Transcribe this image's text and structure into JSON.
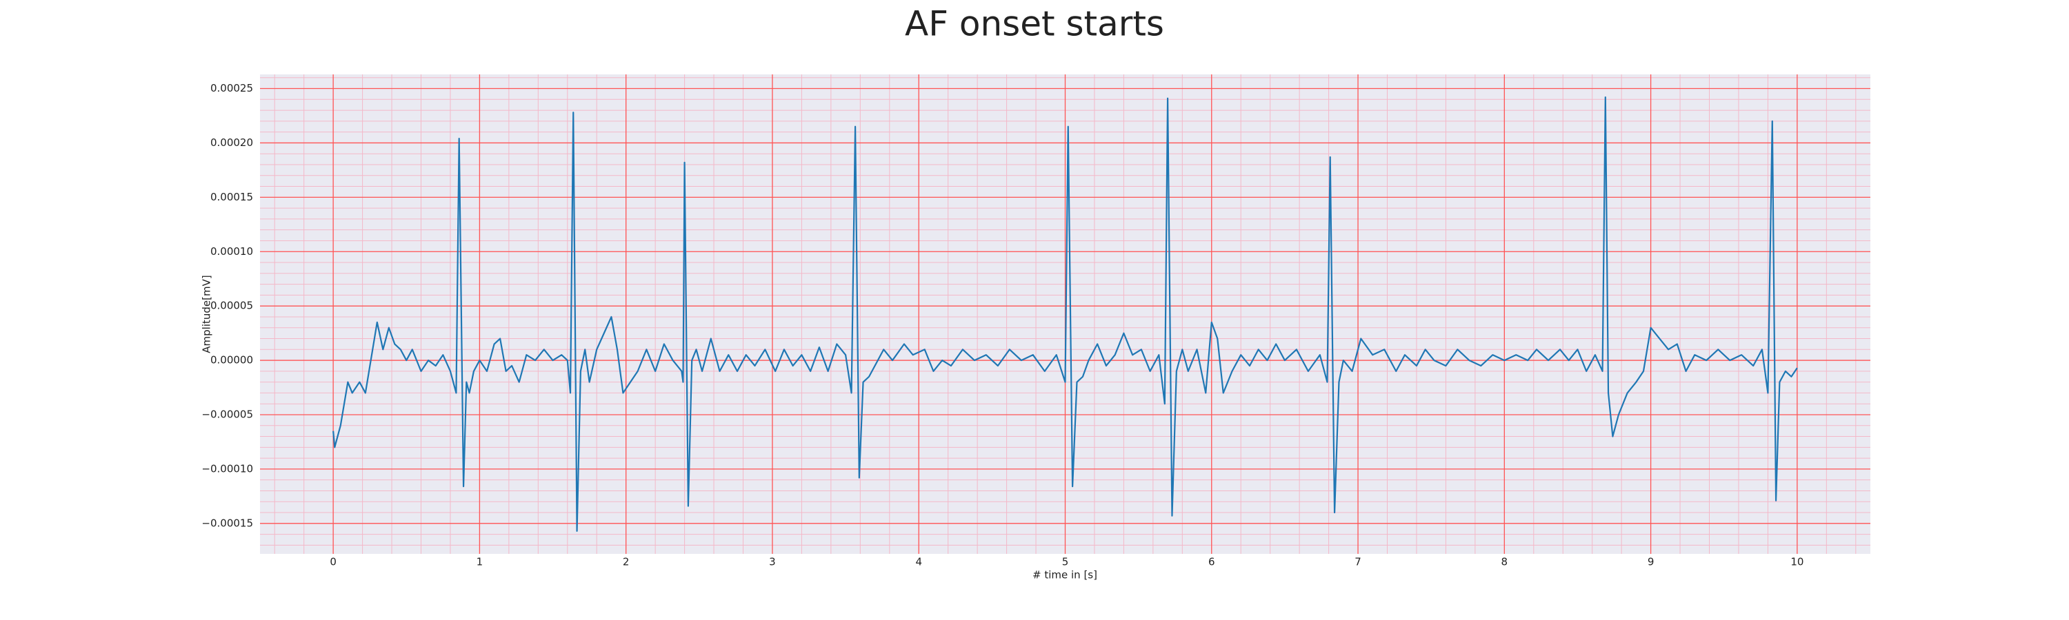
{
  "chart_data": {
    "type": "line",
    "title": "AF onset starts",
    "x_label": "# time in [s]",
    "y_label": "Amplitude[mV]",
    "color": "#1f77b4",
    "grid": true,
    "minor_grid": true,
    "xlim": [
      -0.5,
      10.5
    ],
    "xticks": [
      0,
      1,
      2,
      3,
      4,
      5,
      6,
      7,
      8,
      9,
      10
    ],
    "ylim": [
      -0.000178,
      0.000263
    ],
    "yticks": [
      {
        "value": -0.00015,
        "label": "−0.00015"
      },
      {
        "value": -0.0001,
        "label": "−0.00010"
      },
      {
        "value": -5e-05,
        "label": "−0.00005"
      },
      {
        "value": 0,
        "label": "0.00000"
      },
      {
        "value": 5e-05,
        "label": "0.00005"
      },
      {
        "value": 0.0001,
        "label": "0.00010"
      },
      {
        "value": 0.00015,
        "label": "0.00015"
      },
      {
        "value": 0.0002,
        "label": "0.00020"
      },
      {
        "value": 0.00025,
        "label": "0.00025"
      }
    ],
    "x": [
      0,
      0.01,
      0.05,
      0.1,
      0.13,
      0.18,
      0.22,
      0.3,
      0.34,
      0.38,
      0.42,
      0.46,
      0.5,
      0.54,
      0.6,
      0.65,
      0.7,
      0.75,
      0.8,
      0.84,
      0.86,
      0.89,
      0.91,
      0.93,
      0.96,
      1.0,
      1.05,
      1.1,
      1.14,
      1.18,
      1.22,
      1.27,
      1.32,
      1.38,
      1.44,
      1.5,
      1.56,
      1.6,
      1.62,
      1.64,
      1.665,
      1.69,
      1.72,
      1.75,
      1.8,
      1.85,
      1.9,
      1.94,
      1.98,
      2.03,
      2.08,
      2.14,
      2.2,
      2.26,
      2.32,
      2.38,
      2.39,
      2.4,
      2.425,
      2.45,
      2.48,
      2.52,
      2.58,
      2.64,
      2.7,
      2.76,
      2.82,
      2.88,
      2.95,
      3.02,
      3.08,
      3.14,
      3.2,
      3.26,
      3.32,
      3.38,
      3.44,
      3.5,
      3.54,
      3.566,
      3.593,
      3.62,
      3.66,
      3.7,
      3.76,
      3.82,
      3.9,
      3.96,
      4.04,
      4.1,
      4.16,
      4.22,
      4.3,
      4.38,
      4.46,
      4.54,
      4.62,
      4.7,
      4.78,
      4.86,
      4.94,
      5.0,
      5.02,
      5.05,
      5.08,
      5.12,
      5.16,
      5.22,
      5.28,
      5.34,
      5.4,
      5.46,
      5.52,
      5.58,
      5.64,
      5.68,
      5.7,
      5.73,
      5.76,
      5.8,
      5.84,
      5.9,
      5.96,
      6.0,
      6.04,
      6.08,
      6.14,
      6.2,
      6.26,
      6.32,
      6.38,
      6.44,
      6.5,
      6.58,
      6.66,
      6.74,
      6.79,
      6.81,
      6.84,
      6.87,
      6.9,
      6.96,
      7.02,
      7.1,
      7.18,
      7.26,
      7.32,
      7.4,
      7.46,
      7.52,
      7.6,
      7.68,
      7.76,
      7.84,
      7.92,
      8.0,
      8.08,
      8.16,
      8.22,
      8.3,
      8.38,
      8.44,
      8.5,
      8.56,
      8.62,
      8.67,
      8.69,
      8.71,
      8.74,
      8.78,
      8.84,
      8.9,
      8.95,
      9.0,
      9.06,
      9.12,
      9.18,
      9.24,
      9.3,
      9.38,
      9.46,
      9.54,
      9.62,
      9.7,
      9.76,
      9.8,
      9.83,
      9.855,
      9.88,
      9.92,
      9.96,
      10.0
    ],
    "values": [
      -6.5e-05,
      -8e-05,
      -6e-05,
      -2e-05,
      -3e-05,
      -2e-05,
      -3e-05,
      3.5e-05,
      1e-05,
      3e-05,
      1.5e-05,
      1e-05,
      0,
      1e-05,
      -1e-05,
      0,
      -5e-06,
      5e-06,
      -1e-05,
      -3e-05,
      0.000204,
      -0.000116,
      -2e-05,
      -3e-05,
      -1e-05,
      0,
      -1e-05,
      1.5e-05,
      2e-05,
      -1e-05,
      -5e-06,
      -2e-05,
      5e-06,
      0,
      1e-05,
      0,
      5e-06,
      0,
      -3e-05,
      0.000228,
      -0.000157,
      -1e-05,
      1e-05,
      -2e-05,
      1e-05,
      2.5e-05,
      4e-05,
      1e-05,
      -3e-05,
      -2e-05,
      -1e-05,
      1e-05,
      -1e-05,
      1.5e-05,
      0,
      -1e-05,
      -2e-05,
      0.000182,
      -0.000134,
      0,
      1e-05,
      -1e-05,
      2e-05,
      -1e-05,
      5e-06,
      -1e-05,
      5e-06,
      -5e-06,
      1e-05,
      -1e-05,
      1e-05,
      -5e-06,
      5e-06,
      -1e-05,
      1.2e-05,
      -1e-05,
      1.5e-05,
      5e-06,
      -3e-05,
      0.000215,
      -0.000108,
      -2e-05,
      -1.5e-05,
      -5e-06,
      1e-05,
      0,
      1.5e-05,
      5e-06,
      1e-05,
      -1e-05,
      0,
      -5e-06,
      1e-05,
      0,
      5e-06,
      -5e-06,
      1e-05,
      0,
      5e-06,
      -1e-05,
      5e-06,
      -2e-05,
      0.000215,
      -0.000116,
      -2e-05,
      -1.5e-05,
      0,
      1.5e-05,
      -5e-06,
      5e-06,
      2.5e-05,
      5e-06,
      1e-05,
      -1e-05,
      5e-06,
      -4e-05,
      0.000241,
      -0.000143,
      -1e-05,
      1e-05,
      -1e-05,
      1e-05,
      -3e-05,
      3.5e-05,
      2e-05,
      -3e-05,
      -1e-05,
      5e-06,
      -5e-06,
      1e-05,
      0,
      1.5e-05,
      0,
      1e-05,
      -1e-05,
      5e-06,
      -2e-05,
      0.000187,
      -0.00014,
      -2e-05,
      0,
      -1e-05,
      2e-05,
      5e-06,
      1e-05,
      -1e-05,
      5e-06,
      -5e-06,
      1e-05,
      0,
      -5e-06,
      1e-05,
      0,
      -5e-06,
      5e-06,
      0,
      5e-06,
      0,
      1e-05,
      0,
      1e-05,
      0,
      1e-05,
      -1e-05,
      5e-06,
      -1e-05,
      0.000242,
      -3e-05,
      -7e-05,
      -5e-05,
      -3e-05,
      -2e-05,
      -1e-05,
      3e-05,
      2e-05,
      1e-05,
      1.5e-05,
      -1e-05,
      5e-06,
      0,
      1e-05,
      0,
      5e-06,
      -5e-06,
      1e-05,
      -3e-05,
      0.00022,
      -0.000129,
      -2e-05,
      -1e-05,
      -1.5e-05,
      -7e-06
    ]
  }
}
